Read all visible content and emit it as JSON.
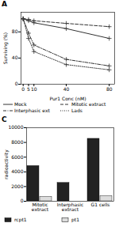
{
  "chart_data": [
    {
      "type": "line",
      "title": "A",
      "xlabel": "Pur1 Conc (nM)",
      "ylabel": "Surviving (%)",
      "x": [
        0,
        5,
        10,
        40,
        80
      ],
      "series": [
        {
          "name": "Mock",
          "color": "#333333",
          "marker": "plus",
          "line_style": "solid",
          "values": [
            100,
            97,
            94,
            85,
            70
          ]
        },
        {
          "name": "Mitotic extract",
          "color": "#333333",
          "marker": "plus",
          "line_style": "dashed",
          "values": [
            100,
            99,
            97,
            93,
            88
          ]
        },
        {
          "name": "Interphasic ext",
          "color": "#333333",
          "marker": "plus",
          "line_style": "dashdot",
          "values": [
            100,
            78,
            60,
            38,
            28
          ]
        },
        {
          "name": "Lads",
          "color": "#333333",
          "marker": "plus",
          "line_style": "dotted",
          "values": [
            100,
            70,
            50,
            30,
            22
          ]
        }
      ],
      "xlim": [
        -2,
        85
      ],
      "xticks": [
        0,
        5,
        10,
        40,
        80
      ],
      "ylim": [
        0,
        110
      ],
      "yticks": [
        0,
        40,
        80
      ]
    },
    {
      "type": "bar",
      "title": "C",
      "ylabel": "radioactivity",
      "categories": [
        "Mitotic\nextract",
        "Interphasic\nextract",
        "G1 cells"
      ],
      "series": [
        {
          "name": "rcpt1",
          "color": "#222222",
          "values": [
            4800,
            2500,
            8500
          ]
        },
        {
          "name": "pt1",
          "color": "#dddddd",
          "values": [
            600,
            0,
            700
          ]
        }
      ],
      "ylim": [
        0,
        10000
      ],
      "yticks": [
        0,
        2000,
        4000,
        6000,
        8000,
        10000
      ]
    }
  ]
}
